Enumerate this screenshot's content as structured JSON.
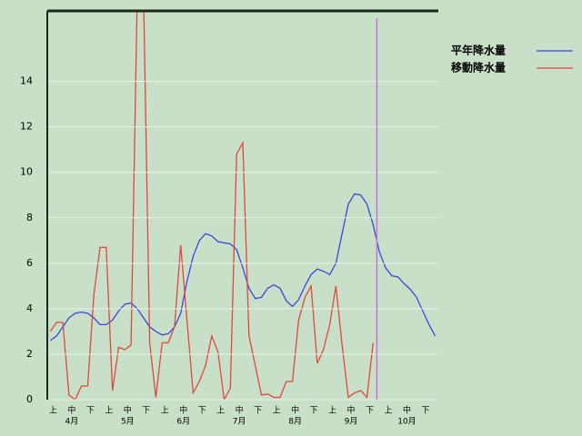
{
  "chart_data": {
    "type": "line",
    "categories": [
      "上",
      null,
      null,
      "中",
      null,
      null,
      "下",
      null,
      null,
      "上",
      null,
      null,
      "中",
      null,
      null,
      "下",
      null,
      null,
      "上",
      null,
      null,
      "中",
      null,
      null,
      "下",
      null,
      null,
      "上",
      null,
      null,
      "中",
      null,
      null,
      "下",
      null,
      null,
      "上",
      null,
      null,
      "中",
      null,
      null,
      "下",
      null,
      null,
      "上",
      null,
      null,
      "中",
      null,
      null,
      "下",
      null,
      null,
      "上",
      null,
      null,
      "中",
      null,
      null,
      "下",
      null,
      null
    ],
    "months": [
      "4月",
      "5月",
      "6月",
      "7月",
      "8月",
      "9月",
      "10月"
    ],
    "series": [
      {
        "name": "平年降水量",
        "color": "#3c46dc",
        "values": [
          2.6,
          2.8,
          3.2,
          3.6,
          3.8,
          3.85,
          3.8,
          3.6,
          3.3,
          3.3,
          3.5,
          3.9,
          4.2,
          4.25,
          4.0,
          3.6,
          3.2,
          3.0,
          2.85,
          2.9,
          3.2,
          3.8,
          5.2,
          6.3,
          7.0,
          7.3,
          7.2,
          6.95,
          6.9,
          6.85,
          6.6,
          5.8,
          4.9,
          4.45,
          4.5,
          4.9,
          5.05,
          4.9,
          4.35,
          4.1,
          4.4,
          5.0,
          5.5,
          5.75,
          5.65,
          5.5,
          6.0,
          7.3,
          8.6,
          9.05,
          9.0,
          8.6,
          7.7,
          6.5,
          5.8,
          5.45,
          5.4,
          5.1,
          4.85,
          4.5,
          3.9,
          3.3,
          2.8
        ]
      },
      {
        "name": "移動降水量",
        "color": "#e0483c",
        "values": [
          3.0,
          3.4,
          3.4,
          0.2,
          0.0,
          0.6,
          0.6,
          4.6,
          6.7,
          6.7,
          0.4,
          2.3,
          2.2,
          2.4,
          18,
          18,
          2.5,
          0.1,
          2.5,
          2.5,
          3.2,
          6.8,
          3.5,
          0.3,
          0.8,
          1.5,
          2.8,
          2.1,
          0.0,
          0.5,
          10.8,
          11.3,
          2.8,
          1.5,
          0.2,
          0.25,
          0.1,
          0.1,
          0.8,
          0.8,
          3.5,
          4.5,
          5.0,
          1.6,
          2.2,
          3.3,
          5.0,
          2.4,
          0.1,
          0.3,
          0.4,
          0.1,
          2.5,
          null,
          null,
          null,
          null,
          null,
          null,
          null,
          null,
          null,
          null
        ]
      }
    ],
    "marker": {
      "x": 52.6,
      "color": "#d070e0"
    },
    "ylim": [
      0,
      17.1
    ],
    "yticks": [
      0,
      2,
      4,
      6,
      8,
      10,
      12,
      14
    ],
    "grid": true
  }
}
